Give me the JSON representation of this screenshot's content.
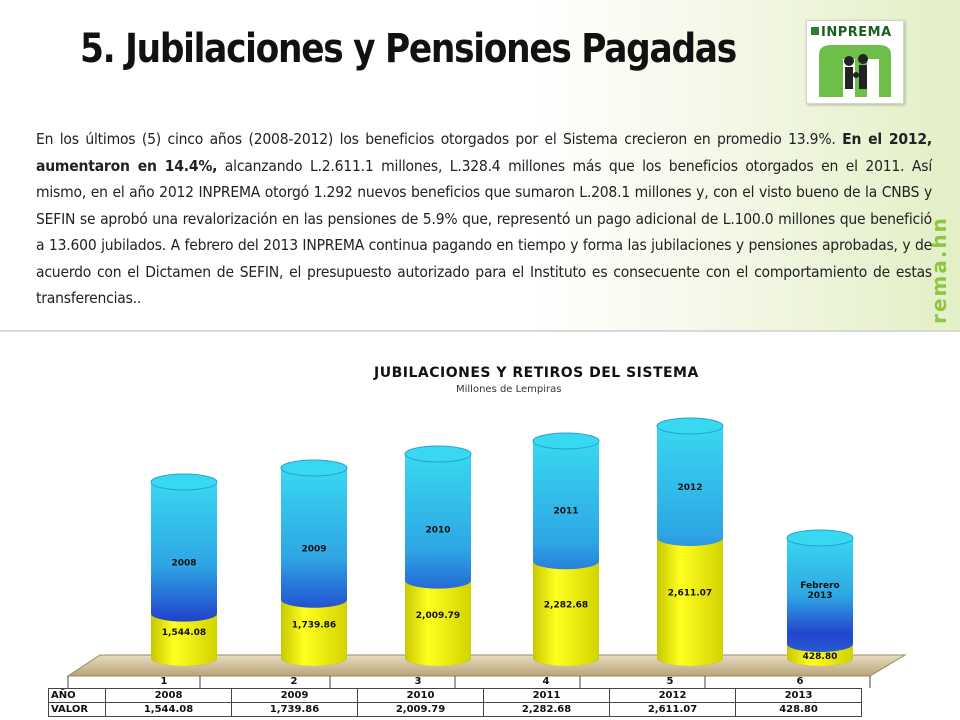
{
  "header": {
    "title": "5. Jubilaciones y Pensiones Pagadas",
    "logo_text": "INPREMA",
    "side_text": "rema.hn"
  },
  "paragraph": {
    "part1": "En los últimos (5) cinco años (2008-2012) los beneficios otorgados por el Sistema crecieron en promedio 13.9%. ",
    "bold": "En el 2012, aumentaron en 14.4%,",
    "part2": " alcanzando L.2.611.1 millones, L.328.4 millones más que los beneficios otorgados en el 2011. Así mismo, en el año 2012 INPREMA otorgó 1.292 nuevos beneficios que sumaron L.208.1 millones y, con el visto bueno de la CNBS y SEFIN se aprobó una revalorización en las pensiones de 5.9% que, representó un pago adicional de L.100.0 millones que benefició a 13.600 jubilados. A febrero del 2013 INPREMA continua pagando en tiempo y forma las jubilaciones y pensiones aprobadas, y de acuerdo con el Dictamen de SEFIN, el presupuesto autorizado para el Instituto es consecuente con el comportamiento de estas transferencias.."
  },
  "chart_data": {
    "type": "bar",
    "title": "JUBILACIONES Y RETIROS DEL SISTEMA",
    "subtitle": "Millones de Lempiras",
    "categories": [
      "1",
      "2",
      "3",
      "4",
      "5",
      "6"
    ],
    "bar_labels": [
      "2008",
      "2009",
      "2010",
      "2011",
      "2012",
      "Febrero 2013"
    ],
    "values": [
      1544.08,
      1739.86,
      2009.79,
      2282.68,
      2611.07,
      428.8
    ],
    "value_labels": [
      "1,544.08",
      "1,739.86",
      "2,009.79",
      "2,282.68",
      "2,611.07",
      "428.80"
    ],
    "colors": {
      "fill": "#f2f200",
      "top_light": "#33ccee",
      "band": "#2244cc"
    },
    "table": {
      "row_labels": [
        "AÑO",
        "VALOR"
      ],
      "years": [
        "2008",
        "2009",
        "2010",
        "2011",
        "2012",
        "2013"
      ],
      "values": [
        "1,544.08",
        "1,739.86",
        "2,009.79",
        "2,282.68",
        "2,611.07",
        "428.80"
      ]
    }
  }
}
